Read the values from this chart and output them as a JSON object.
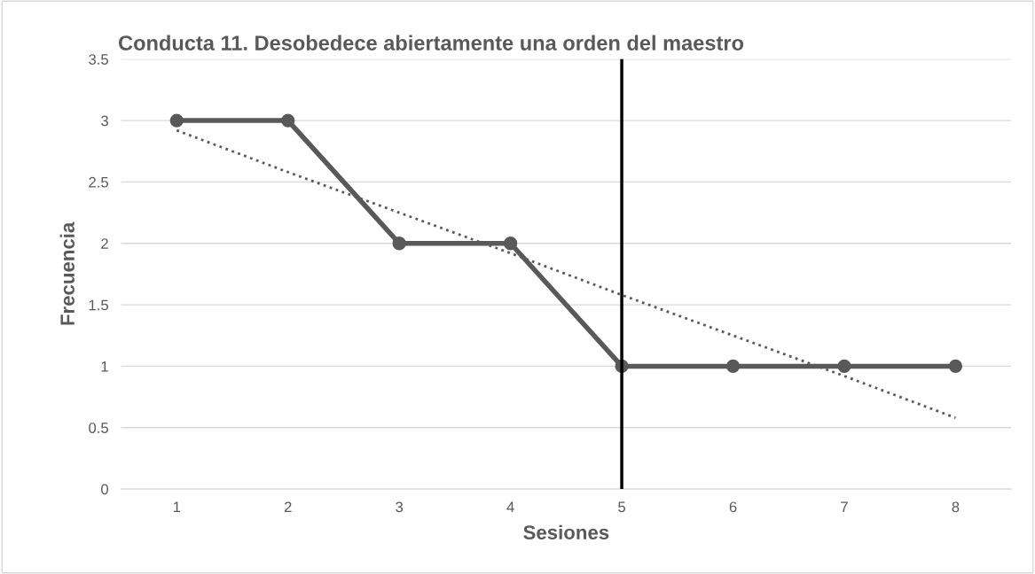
{
  "chart_data": {
    "type": "line",
    "title": "Conducta 11. Desobedece abiertamente una orden del maestro",
    "xlabel": "Sesiones",
    "ylabel": "Frecuencia",
    "categories": [
      "1",
      "2",
      "3",
      "4",
      "5",
      "6",
      "7",
      "8"
    ],
    "series": [
      {
        "color": "#595959",
        "marker": "circle",
        "line_style": "solid",
        "values": [
          3,
          3,
          2,
          2,
          1,
          1,
          1,
          1
        ]
      },
      {
        "color": "#595959",
        "marker": "none",
        "line_style": "dotted",
        "values": [
          2.92,
          2.58,
          2.25,
          1.92,
          1.58,
          1.25,
          0.92,
          0.58
        ]
      }
    ],
    "ref_lines": [
      {
        "axis": "x",
        "value": "5",
        "color": "#000000",
        "line_style": "solid"
      }
    ],
    "ylim": [
      0,
      3.5
    ],
    "yticks": [
      0,
      0.5,
      1,
      1.5,
      2,
      2.5,
      3,
      3.5
    ],
    "grid": "y",
    "legend": false
  }
}
